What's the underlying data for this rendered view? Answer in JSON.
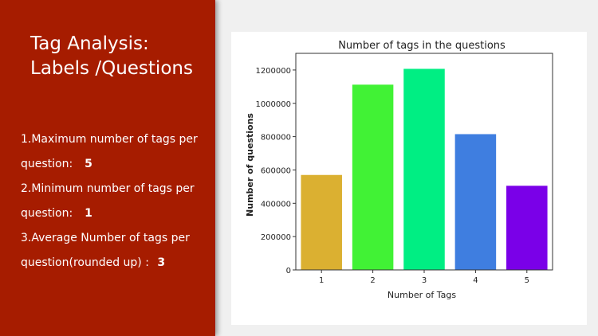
{
  "slide": {
    "title_line1": "Tag Analysis:",
    "title_line2": "Labels /Questions",
    "stats": [
      {
        "line1": "1.Maximum number of tags per",
        "line2": "question:",
        "value": "5"
      },
      {
        "line1": "2.Minimum number of tags per",
        "line2": "question:",
        "value": "1"
      },
      {
        "line1": "3.Average Number of tags per",
        "line2": "question(rounded up) :",
        "value": "3"
      }
    ]
  },
  "colors": {
    "left_panel": "#a61c00",
    "bars": [
      "#dbb031",
      "#41f235",
      "#00ee83",
      "#3f7ee0",
      "#7a00e8"
    ]
  },
  "chart_data": {
    "type": "bar",
    "title": "Number of tags in the questions",
    "xlabel": "Number of Tags",
    "ylabel": "Number of questions",
    "categories": [
      "1",
      "2",
      "3",
      "4",
      "5"
    ],
    "values": [
      570000,
      1112000,
      1207000,
      815000,
      505000
    ],
    "ylim": [
      0,
      1300000
    ],
    "yticks": [
      0,
      200000,
      400000,
      600000,
      800000,
      1000000,
      1200000
    ],
    "ytick_labels": [
      "0",
      "200000",
      "400000",
      "600000",
      "800000",
      "1000000",
      "1200000"
    ],
    "grid": false,
    "legend": "none"
  }
}
